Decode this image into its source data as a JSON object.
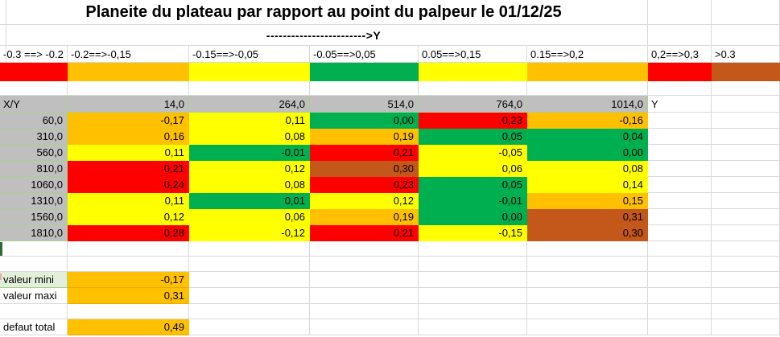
{
  "title": "Planeite du plateau par rapport au point du palpeur le 01/12/25",
  "arrow_label": "------------------------>Y",
  "colors": {
    "red": "#ff0000",
    "orange": "#ffc000",
    "yellow": "#ffff00",
    "green": "#00b050",
    "brown": "#c4571a",
    "header_gray": "#bfbfbf",
    "mini_label_bg": "#e2efda",
    "grid_line": "#d9d9d9",
    "table_border_green": "#a9d08e",
    "green_fragment": "#2d6a34",
    "pink_fragment": "#eaaaaa"
  },
  "legend": {
    "items": [
      {
        "label": "-0.3 ==> -0.2",
        "color": "red"
      },
      {
        "label": "-0.2==>-0,15",
        "color": "orange"
      },
      {
        "label": "-0.15==>-0,05",
        "color": "yellow"
      },
      {
        "label": "-0.05==>0,05",
        "color": "green"
      },
      {
        "label": "0.05==>0,15",
        "color": "yellow"
      },
      {
        "label": "0.15==>0,2",
        "color": "orange"
      },
      {
        "label": "0,2==>0,3",
        "color": "red"
      },
      {
        "label": ">0.3",
        "color": "brown"
      }
    ]
  },
  "table": {
    "corner_label": "X/Y",
    "column_headers": [
      "14,0",
      "264,0",
      "514,0",
      "764,0",
      "1014,0"
    ],
    "y_axis_label": "Y",
    "rows": [
      {
        "label": "60,0",
        "cells": [
          {
            "value": "-0,17",
            "color": "orange"
          },
          {
            "value": "0,11",
            "color": "yellow"
          },
          {
            "value": "0,00",
            "color": "green"
          },
          {
            "value": "0,23",
            "color": "red"
          },
          {
            "value": "-0,16",
            "color": "orange"
          }
        ]
      },
      {
        "label": "310,0",
        "cells": [
          {
            "value": "0,16",
            "color": "orange"
          },
          {
            "value": "0,08",
            "color": "yellow"
          },
          {
            "value": "0,19",
            "color": "orange"
          },
          {
            "value": "0,05",
            "color": "green"
          },
          {
            "value": "0,04",
            "color": "green"
          }
        ]
      },
      {
        "label": "560,0",
        "cells": [
          {
            "value": "0,11",
            "color": "yellow"
          },
          {
            "value": "-0,01",
            "color": "green"
          },
          {
            "value": "0,21",
            "color": "red"
          },
          {
            "value": "-0,05",
            "color": "yellow"
          },
          {
            "value": "0,00",
            "color": "green"
          }
        ]
      },
      {
        "label": "810,0",
        "cells": [
          {
            "value": "0,21",
            "color": "red"
          },
          {
            "value": "0,12",
            "color": "yellow"
          },
          {
            "value": "0,30",
            "color": "brown"
          },
          {
            "value": "0,06",
            "color": "yellow"
          },
          {
            "value": "0,08",
            "color": "yellow"
          }
        ]
      },
      {
        "label": "1060,0",
        "cells": [
          {
            "value": "0,24",
            "color": "red"
          },
          {
            "value": "0,08",
            "color": "yellow"
          },
          {
            "value": "0,23",
            "color": "red"
          },
          {
            "value": "0,05",
            "color": "green"
          },
          {
            "value": "0,14",
            "color": "yellow"
          }
        ]
      },
      {
        "label": "1310,0",
        "cells": [
          {
            "value": "0,11",
            "color": "yellow"
          },
          {
            "value": "0,01",
            "color": "green"
          },
          {
            "value": "0,12",
            "color": "yellow"
          },
          {
            "value": "-0,01",
            "color": "green"
          },
          {
            "value": "0,15",
            "color": "orange"
          }
        ]
      },
      {
        "label": "1560,0",
        "cells": [
          {
            "value": "0,12",
            "color": "yellow"
          },
          {
            "value": "0,06",
            "color": "yellow"
          },
          {
            "value": "0,19",
            "color": "orange"
          },
          {
            "value": "0,00",
            "color": "green"
          },
          {
            "value": "0,31",
            "color": "brown"
          }
        ]
      },
      {
        "label": "1810,0",
        "cells": [
          {
            "value": "0,28",
            "color": "red"
          },
          {
            "value": "-0,12",
            "color": "yellow"
          },
          {
            "value": "0,21",
            "color": "red"
          },
          {
            "value": "-0,15",
            "color": "yellow"
          },
          {
            "value": "0,30",
            "color": "brown"
          }
        ]
      }
    ]
  },
  "summary": {
    "rows": [
      {
        "label": "valeur mini",
        "value": "-0,17",
        "label_highlight": true
      },
      {
        "label": "valeur maxi",
        "value": "0,31",
        "label_highlight": false
      },
      {
        "label": "defaut total",
        "value": "0,49",
        "label_highlight": false
      }
    ]
  }
}
